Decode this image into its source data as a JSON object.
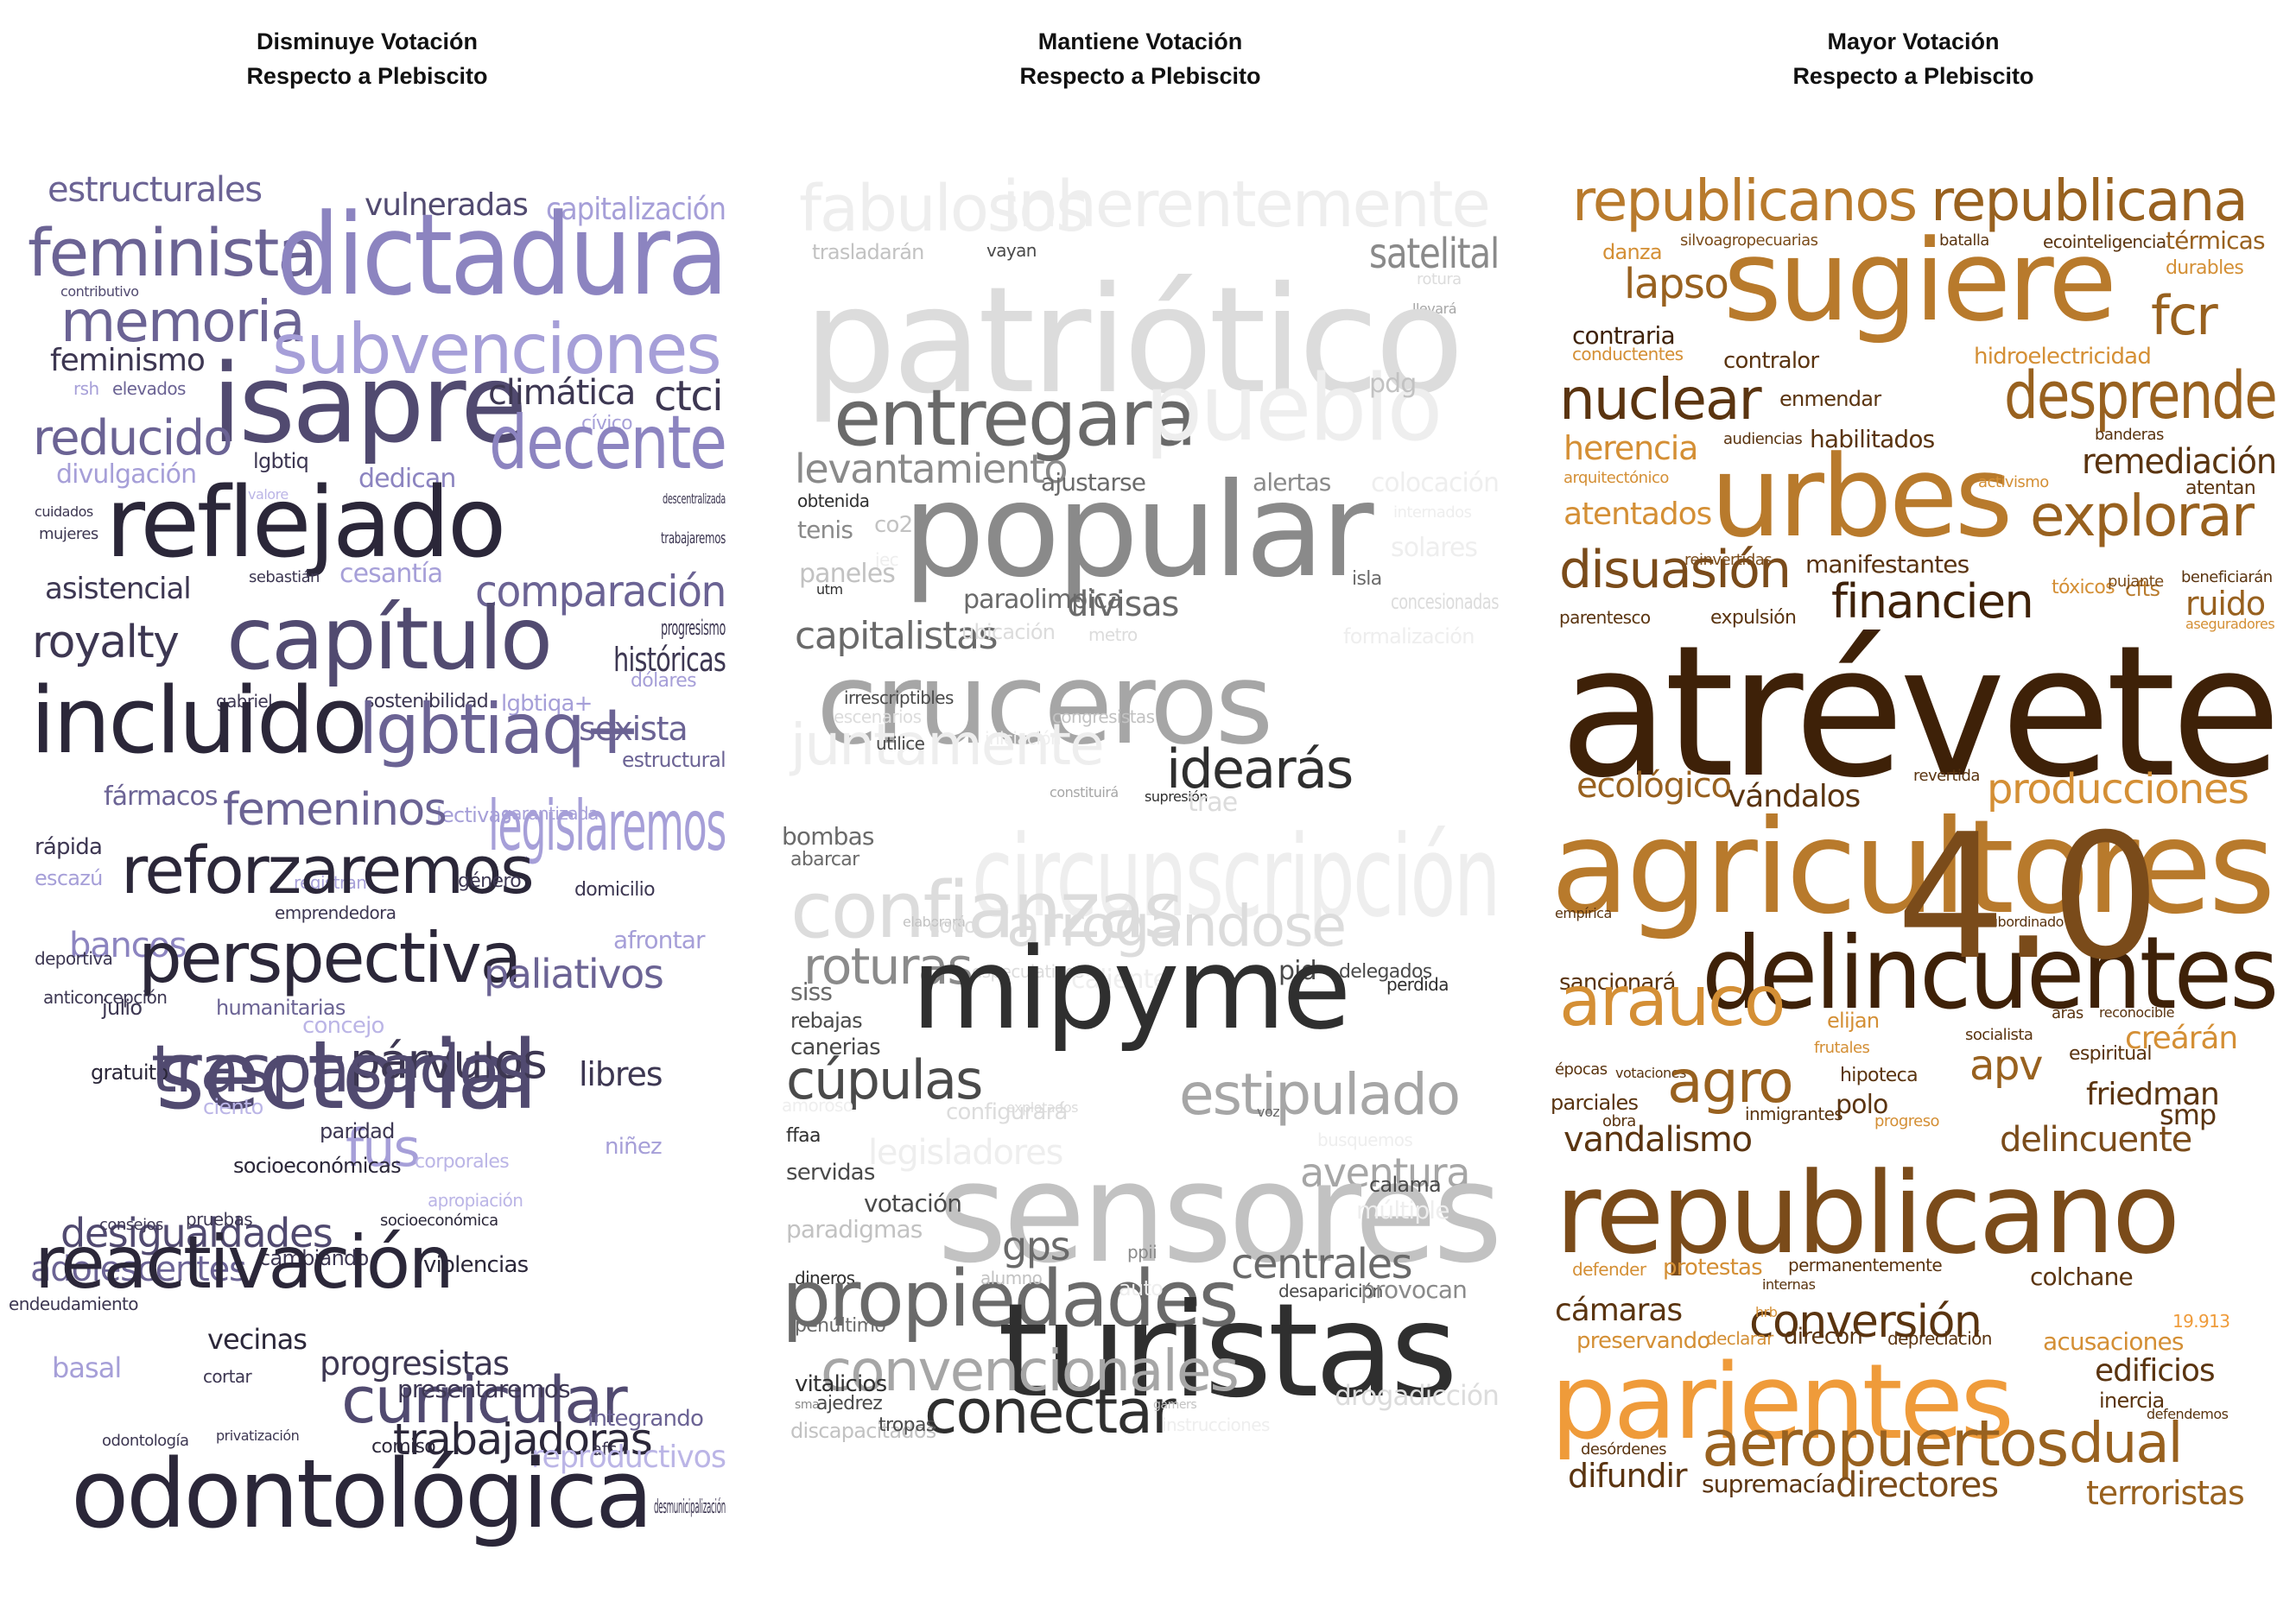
{
  "panels": [
    {
      "title_line1": "Disminuye Votación",
      "title_line2": "Respecto a Plebiscito",
      "words": [
        "estructurales",
        "vulneradas",
        "capitalización",
        "feminista",
        "dictadura",
        "contributivo",
        "memoria",
        "subvenciones",
        "feminismo",
        "elevados",
        "rsh",
        "isapre",
        "climática",
        "ctci",
        "cívico",
        "reducido",
        "decente",
        "lgbtiq",
        "divulgación",
        "dedican",
        "valore",
        "cuidados",
        "descentralizada",
        "mujeres",
        "reflejado",
        "trabajaremos",
        "sebastián",
        "cesantía",
        "asistencial",
        "comparación",
        "progresismo",
        "royalty",
        "capítulo",
        "históricas",
        "dólares",
        "gabriel",
        "sostenibilidad",
        "lgbtiqa+",
        "incluido",
        "lgbtiaq+",
        "sexista",
        "estructural",
        "fármacos",
        "lectivas",
        "garantizada",
        "rápida",
        "femeninos",
        "legislaremos",
        "escazú",
        "registran",
        "reforzaremos",
        "género",
        "domicilio",
        "emprendedora",
        "bancos",
        "afrontar",
        "deportiva",
        "perspectiva",
        "paliativos",
        "anticoncepción",
        "julio",
        "humanitarias",
        "concejo",
        "sectorial",
        "párvulos",
        "gratuito",
        "traspasados",
        "libres",
        "ciento",
        "niñez",
        "fus",
        "paridad",
        "corporales",
        "desigualdades",
        "socioeconómicas",
        "apropiación",
        "consejos",
        "pruebas",
        "socioeconómica",
        "adolescentes",
        "endeudamiento",
        "violencias",
        "cambiando",
        "universidad",
        "reactivación",
        "progresistas",
        "basal",
        "cortar",
        "vecinas",
        "curricular",
        "presentaremos",
        "integrando",
        "trabajadoras",
        "afc",
        "odontología",
        "privatización",
        "comiso",
        "reproductivos",
        "odontológica",
        "desmunicipalización"
      ]
    },
    {
      "title_line1": "Mantiene Votación",
      "title_line2": "Respecto a Plebiscito",
      "words": [
        "fabulosos",
        "inherentemente",
        "trasladarán",
        "vayan",
        "satelital",
        "rotura",
        "llevará",
        "patriótico",
        "entregara",
        "pueblo",
        "pdg",
        "levantamiento",
        "ajustarse",
        "alertas",
        "colocación",
        "obtenida",
        "internados",
        "tenis",
        "co2",
        "popular",
        "solares",
        "jec",
        "paneles",
        "isla",
        "utm",
        "paraolimpica",
        "divisas",
        "concesionadas",
        "capitalistas",
        "ubicación",
        "metro",
        "formalización",
        "cruceros",
        "escenarios",
        "congresistas",
        "juntamente",
        "iniciación",
        "idearás",
        "constituirá",
        "supresión",
        "trae",
        "bombas",
        "abarcar",
        "circunscripción",
        "confianzas",
        "elaborará",
        "codo",
        "arrogándose",
        "roturas",
        "especulativos",
        "caliente",
        "pid",
        "delegados",
        "perdida",
        "siss",
        "mipyme",
        "rebajas",
        "canerias",
        "cúpulas",
        "estipulado",
        "amoroso",
        "configurará",
        "explotados",
        "voz",
        "ffaa",
        "legisladores",
        "busquemos",
        "aventura",
        "servidas",
        "sensores",
        "calama",
        "votación",
        "múltiple",
        "paradigmas",
        "gps",
        "ppii",
        "centrales",
        "dineros",
        "propiedades",
        "alumno",
        "auto",
        "desaparición",
        "provocan",
        "penúltimo",
        "turistas",
        "convencionales",
        "vitalicios",
        "sma",
        "conectar",
        "drogadicción",
        "discapacitados",
        "gamers",
        "ajedrez",
        "tropas",
        "instrucciones",
        "defraudado",
        "irrescriptibles",
        "utilice"
      ]
    },
    {
      "title_line1": "Mayor Votación",
      "title_line2": "Respecto a Plebiscito",
      "words": [
        "republicanos",
        "republicana",
        "danza",
        "silvoagropecuarias",
        "batalla",
        "ecointeligencia",
        "térmicas",
        "sugiere",
        "durables",
        "lapso",
        "fcr",
        "contraria",
        "conductentes",
        "contralor",
        "hidroelectricidad",
        "nuclear",
        "enmendar",
        "desprende",
        "herencia",
        "audiencias",
        "habilitados",
        "banderas",
        "remediación",
        "arquitectónico",
        "urbes",
        "activismo",
        "atentan",
        "atentados",
        "explorar",
        "reinvertidas",
        "disuasión",
        "manifestantes",
        "tóxicos",
        "cfts",
        "beneficiarán",
        "parentesco",
        "expulsión",
        "financien",
        "pujante",
        "ruido",
        "aseguradores",
        "atrévete",
        "revertida",
        "ecológico",
        "vándalos",
        "producciones",
        "agricultores",
        "empírica",
        "subordinado",
        "delincuentes",
        "sancionará",
        "arauco",
        "aras",
        "reconocible",
        "elijan",
        "creárán",
        "socialista",
        "espiritual",
        "frutales",
        "4.0",
        "épocas",
        "votaciones",
        "hipoteca",
        "apv",
        "agro",
        "friedman",
        "parciales",
        "polo",
        "smp",
        "obra",
        "inmigrantes",
        "progreso",
        "vandalismo",
        "delincuente",
        "republicano",
        "defender",
        "protestas",
        "permanentemente",
        "colchane",
        "internas",
        "conversión",
        "cámaras",
        "hrb",
        "19.913",
        "preservando",
        "declarar",
        "direcon",
        "depreciación",
        "acusaciones",
        "parientes",
        "edificios",
        "inercia",
        "defendemos",
        "desórdenes",
        "aeropuertos",
        "dual",
        "difundir",
        "supremacía",
        "directores",
        "terroristas"
      ]
    }
  ],
  "colors": {
    "panel1_palette": [
      "#2b2739",
      "#3d3752",
      "#514a70",
      "#6b6394",
      "#8c84c0",
      "#a69fd8",
      "#bbb5e6"
    ],
    "panel2_palette": [
      "#2f2f2f",
      "#4a4a4a",
      "#6a6a6a",
      "#8a8a8a",
      "#a6a6a6",
      "#c2c2c2",
      "#dcdcdc",
      "#eeeeee"
    ],
    "panel3_palette": [
      "#3e2108",
      "#5a3410",
      "#7a4b1a",
      "#98611f",
      "#b87a2c",
      "#d48f35",
      "#ef9b3a",
      "#f4ae55"
    ]
  }
}
